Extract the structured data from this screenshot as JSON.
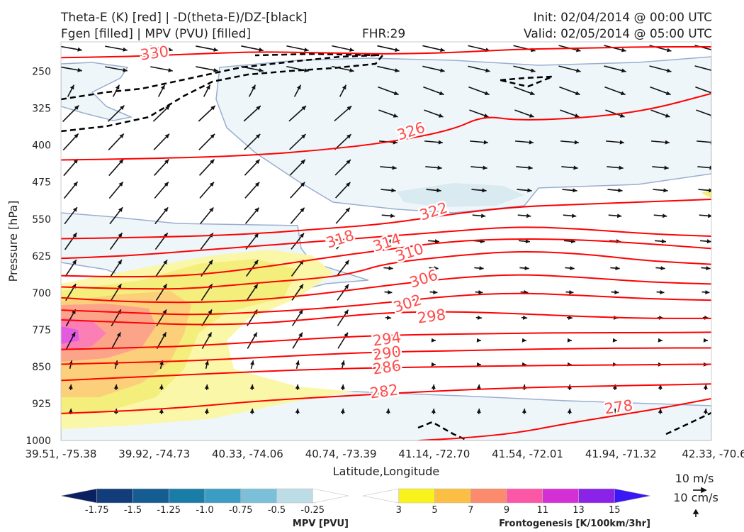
{
  "header": {
    "title_left_1": "Theta-E (K) [red] | -D(theta-E)/DZ-[black]",
    "title_left_2": "Fgen [filled] | MPV (PVU) [filled]",
    "fhr": "FHR:29",
    "init": "Init: 02/04/2014 @ 00:00 UTC",
    "valid": "Valid: 02/05/2014 @ 05:00 UTC"
  },
  "chart_data": {
    "type": "cross-section",
    "title": "Theta-E (K) [red] | -D(theta-E)/DZ-[black] | Fgen [filled] | MPV (PVU) [filled]",
    "xlabel": "Latitude,Longitude",
    "ylabel": "Pressure [hPa]",
    "x_ticks": [
      "39.51, -75.38",
      "39.92, -74.73",
      "40.33, -74.06",
      "40.74, -73.39",
      "41.14, -72.70",
      "41.54, -72.01",
      "41.94, -71.32",
      "42.33, -70.6"
    ],
    "y_ticks": [
      250,
      325,
      400,
      475,
      550,
      625,
      700,
      775,
      850,
      925,
      1000
    ],
    "ylim": [
      1000,
      190
    ],
    "y_scale": "linear, inverted",
    "theta_e_contours": [
      {
        "value": 278,
        "label": "278",
        "points": [
          [
            0.55,
            1000
          ],
          [
            0.62,
            995
          ],
          [
            0.7,
            985
          ],
          [
            0.78,
            965
          ],
          [
            0.85,
            950
          ],
          [
            0.92,
            935
          ],
          [
            1.0,
            915
          ]
        ]
      },
      {
        "value": 282,
        "label": "282",
        "points": [
          [
            0,
            945
          ],
          [
            0.1,
            940
          ],
          [
            0.2,
            932
          ],
          [
            0.3,
            920
          ],
          [
            0.4,
            912
          ],
          [
            0.5,
            905
          ],
          [
            0.6,
            898
          ],
          [
            0.7,
            893
          ],
          [
            0.8,
            890
          ],
          [
            0.9,
            888
          ],
          [
            1.0,
            885
          ]
        ]
      },
      {
        "value": 286,
        "label": "286",
        "points": [
          [
            0,
            878
          ],
          [
            0.1,
            872
          ],
          [
            0.2,
            866
          ],
          [
            0.3,
            860
          ],
          [
            0.4,
            855
          ],
          [
            0.5,
            852
          ],
          [
            0.6,
            850
          ],
          [
            0.7,
            848
          ],
          [
            0.8,
            847
          ],
          [
            0.9,
            846
          ],
          [
            1.0,
            845
          ]
        ]
      },
      {
        "value": 290,
        "label": "290",
        "points": [
          [
            0,
            845
          ],
          [
            0.1,
            842
          ],
          [
            0.2,
            838
          ],
          [
            0.3,
            832
          ],
          [
            0.4,
            825
          ],
          [
            0.5,
            820
          ],
          [
            0.6,
            818
          ],
          [
            0.7,
            815
          ],
          [
            0.8,
            813
          ],
          [
            0.9,
            812
          ],
          [
            1.0,
            812
          ]
        ]
      },
      {
        "value": 294,
        "label": "294",
        "points": [
          [
            0,
            815
          ],
          [
            0.1,
            812
          ],
          [
            0.2,
            808
          ],
          [
            0.3,
            800
          ],
          [
            0.4,
            792
          ],
          [
            0.5,
            786
          ],
          [
            0.6,
            784
          ],
          [
            0.7,
            782
          ],
          [
            0.8,
            781
          ],
          [
            0.9,
            781
          ],
          [
            1.0,
            780
          ]
        ]
      },
      {
        "value": 298,
        "label": "298",
        "points": [
          [
            0,
            755
          ],
          [
            0.1,
            760
          ],
          [
            0.2,
            765
          ],
          [
            0.3,
            763
          ],
          [
            0.4,
            752
          ],
          [
            0.5,
            740
          ],
          [
            0.6,
            738
          ],
          [
            0.7,
            742
          ],
          [
            0.8,
            748
          ],
          [
            0.9,
            752
          ],
          [
            1.0,
            752
          ]
        ]
      },
      {
        "value": 302,
        "label": "302",
        "points": [
          [
            0,
            735
          ],
          [
            0.1,
            740
          ],
          [
            0.2,
            745
          ],
          [
            0.3,
            740
          ],
          [
            0.4,
            732
          ],
          [
            0.5,
            720
          ],
          [
            0.6,
            706
          ],
          [
            0.7,
            700
          ],
          [
            0.8,
            705
          ],
          [
            0.9,
            712
          ],
          [
            1.0,
            715
          ]
        ]
      },
      {
        "value": 306,
        "label": "306",
        "points": [
          [
            0,
            710
          ],
          [
            0.1,
            718
          ],
          [
            0.2,
            720
          ],
          [
            0.3,
            715
          ],
          [
            0.4,
            702
          ],
          [
            0.5,
            685
          ],
          [
            0.6,
            670
          ],
          [
            0.7,
            662
          ],
          [
            0.8,
            668
          ],
          [
            0.9,
            678
          ],
          [
            1.0,
            682
          ]
        ]
      },
      {
        "value": 310,
        "label": "310",
        "points": [
          [
            0,
            688
          ],
          [
            0.1,
            692
          ],
          [
            0.2,
            692
          ],
          [
            0.3,
            680
          ],
          [
            0.4,
            670
          ],
          [
            0.45,
            660
          ],
          [
            0.5,
            640
          ],
          [
            0.6,
            625
          ],
          [
            0.7,
            615
          ],
          [
            0.8,
            620
          ],
          [
            0.9,
            635
          ],
          [
            1.0,
            642
          ]
        ]
      },
      {
        "value": 314,
        "label": "314",
        "points": [
          [
            0,
            665
          ],
          [
            0.1,
            668
          ],
          [
            0.2,
            665
          ],
          [
            0.3,
            650
          ],
          [
            0.4,
            630
          ],
          [
            0.5,
            612
          ],
          [
            0.6,
            595
          ],
          [
            0.7,
            590
          ],
          [
            0.8,
            592
          ],
          [
            0.9,
            600
          ],
          [
            1.0,
            610
          ]
        ]
      },
      {
        "value": 318,
        "label": "318",
        "points": [
          [
            0,
            630
          ],
          [
            0.1,
            625
          ],
          [
            0.2,
            615
          ],
          [
            0.3,
            605
          ],
          [
            0.4,
            595
          ],
          [
            0.5,
            585
          ],
          [
            0.6,
            575
          ],
          [
            0.7,
            565
          ],
          [
            0.8,
            570
          ],
          [
            0.9,
            580
          ],
          [
            1.0,
            585
          ]
        ]
      },
      {
        "value": 322,
        "label": "322",
        "points": [
          [
            0,
            590
          ],
          [
            0.1,
            588
          ],
          [
            0.2,
            585
          ],
          [
            0.3,
            580
          ],
          [
            0.4,
            570
          ],
          [
            0.5,
            560
          ],
          [
            0.6,
            540
          ],
          [
            0.7,
            525
          ],
          [
            0.8,
            520
          ],
          [
            0.9,
            515
          ],
          [
            1.0,
            510
          ]
        ]
      },
      {
        "value": 326,
        "label": "326",
        "points": [
          [
            0,
            430
          ],
          [
            0.1,
            428
          ],
          [
            0.2,
            425
          ],
          [
            0.3,
            420
          ],
          [
            0.4,
            410
          ],
          [
            0.5,
            395
          ],
          [
            0.6,
            370
          ],
          [
            0.65,
            340
          ],
          [
            0.7,
            350
          ],
          [
            0.8,
            345
          ],
          [
            0.9,
            330
          ],
          [
            1.0,
            295
          ]
        ]
      },
      {
        "value": 330,
        "label": "330",
        "points": [
          [
            0,
            222
          ],
          [
            0.1,
            220
          ],
          [
            0.2,
            215
          ],
          [
            0.3,
            210
          ],
          [
            0.4,
            212
          ],
          [
            0.5,
            215
          ],
          [
            0.6,
            212
          ],
          [
            0.7,
            205
          ],
          [
            0.8,
            203
          ],
          [
            0.9,
            200
          ],
          [
            1.0,
            200
          ]
        ]
      }
    ],
    "colorbars": [
      {
        "name": "MPV [PVU]",
        "ticks": [
          "-1.75",
          "-1.5",
          "-1.25",
          "-1.0",
          "-0.75",
          "-0.5",
          "-0.25"
        ],
        "colors": [
          "#0a2060",
          "#123d7a",
          "#155c92",
          "#1a7da8",
          "#3b9dc4",
          "#7cbfd8",
          "#bcdce6",
          "#ffffff"
        ]
      },
      {
        "name": "Frontogenesis [K/100km/3hr]",
        "ticks": [
          "3",
          "5",
          "7",
          "9",
          "11",
          "13",
          "15"
        ],
        "colors": [
          "#ffffff",
          "#f9f21c",
          "#fcbf44",
          "#fc8a6c",
          "#fc56a6",
          "#d42fd4",
          "#8a22e8",
          "#3a18f4"
        ]
      }
    ],
    "vector_scale": [
      "10 m/s",
      "10 cm/s"
    ]
  }
}
